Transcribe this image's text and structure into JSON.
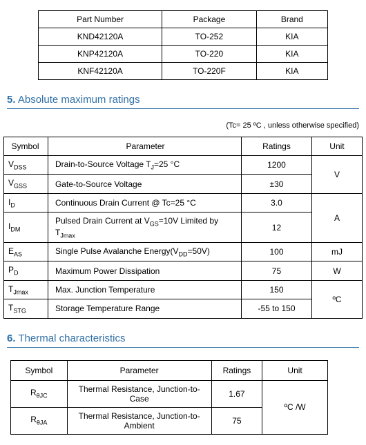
{
  "parts_table": {
    "headers": [
      "Part Number",
      "Package",
      "Brand"
    ],
    "rows": [
      [
        "KND42120A",
        "TO-252",
        "KIA"
      ],
      [
        "KNP42120A",
        "TO-220",
        "KIA"
      ],
      [
        "KNF42120A",
        "TO-220F",
        "KIA"
      ]
    ]
  },
  "section5": {
    "number": "5.",
    "title": "Absolute maximum ratings",
    "condition": "(Tc= 25 ºC , unless otherwise specified)",
    "headers": [
      "Symbol",
      "Parameter",
      "Ratings",
      "Unit"
    ],
    "rows": [
      {
        "sym_html": "V<sub>DSS</sub>",
        "param": "Drain-to-Source Voltage T<sub>J</sub>=25 °C",
        "rating": "1200",
        "unit": "V",
        "unit_rowspan": 2
      },
      {
        "sym_html": "V<sub>GSS</sub>",
        "param": "Gate-to-Source Voltage",
        "rating": "±30"
      },
      {
        "sym_html": "I<sub>D</sub>",
        "param": "Continuous Drain Current @ Tc=25 °C",
        "rating": "3.0",
        "unit": "A",
        "unit_rowspan": 2
      },
      {
        "sym_html": "I<sub>DM</sub>",
        "param": "Pulsed Drain Current at V<sub>GS</sub>=10V Limited by T<sub>Jmax</sub>",
        "rating": "12"
      },
      {
        "sym_html": "E<sub>AS</sub>",
        "param": "Single Pulse Avalanche Energy(V<sub>DD</sub>=50V)",
        "rating": "100",
        "unit": "mJ",
        "unit_rowspan": 1
      },
      {
        "sym_html": "P<sub>D</sub>",
        "param": "Maximum Power Dissipation",
        "rating": "75",
        "unit": "W",
        "unit_rowspan": 1
      },
      {
        "sym_html": "T<sub>Jmax</sub>",
        "param": "Max. Junction Temperature",
        "rating": "150",
        "unit": "ºC",
        "unit_rowspan": 2
      },
      {
        "sym_html": "T<sub>STG</sub>",
        "param": "Storage Temperature Range",
        "rating": "-55 to 150"
      }
    ]
  },
  "section6": {
    "number": "6.",
    "title": "Thermal characteristics",
    "headers": [
      "Symbol",
      "Parameter",
      "Ratings",
      "Unit"
    ],
    "rows": [
      {
        "sym_html": "R<sub>θJC</sub>",
        "param": "Thermal Resistance, Junction-to-Case",
        "rating": "1.67",
        "unit": "ºC /W",
        "unit_rowspan": 2
      },
      {
        "sym_html": "R<sub>θJA</sub>",
        "param": "Thermal Resistance, Junction-to-Ambient",
        "rating": "75"
      }
    ]
  }
}
